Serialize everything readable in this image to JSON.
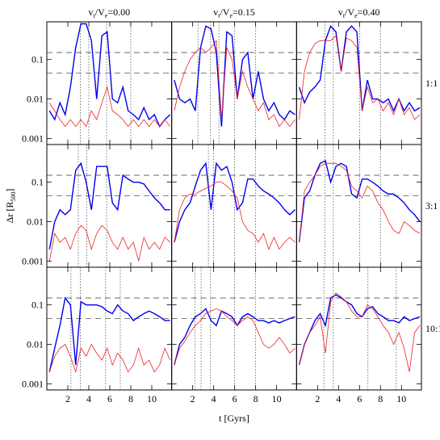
{
  "figure": {
    "xlabel": "t [Gyrs]",
    "ylabel_parts": [
      "Δr [R",
      "500",
      "]"
    ],
    "hlines": [
      0.15,
      0.045
    ]
  },
  "chart_data": [
    {
      "type": "line",
      "title_parts": [
        "v",
        "t",
        "/V",
        "e",
        "=0.00"
      ],
      "log_y": true,
      "xlim": [
        0,
        11.9
      ],
      "ylim": [
        0.0007,
        0.9
      ],
      "xticks": [
        2,
        4,
        6,
        8,
        10
      ],
      "yticks": [
        0.001,
        0.01,
        0.1
      ],
      "vlines": [
        3.2,
        4.0,
        5.7,
        8.0
      ],
      "x": [
        0.25,
        0.75,
        1.25,
        1.75,
        2.25,
        2.75,
        3.25,
        3.75,
        4.25,
        4.75,
        5.25,
        5.75,
        6.25,
        6.75,
        7.25,
        7.75,
        8.25,
        8.75,
        9.25,
        9.75,
        10.25,
        10.75,
        11.25,
        11.75
      ],
      "series": [
        {
          "color": "#0000ee",
          "values": [
            0.005,
            0.003,
            0.008,
            0.004,
            0.02,
            0.2,
            0.8,
            0.8,
            0.3,
            0.01,
            0.4,
            0.5,
            0.01,
            0.008,
            0.02,
            0.005,
            0.004,
            0.003,
            0.006,
            0.003,
            0.004,
            0.002,
            0.003,
            0.004
          ]
        },
        {
          "color": "#ee2222",
          "values": [
            0.008,
            0.005,
            0.003,
            0.002,
            0.003,
            0.002,
            0.003,
            0.002,
            0.005,
            0.003,
            0.008,
            0.02,
            0.005,
            0.004,
            0.003,
            0.002,
            0.003,
            0.002,
            0.003,
            0.002,
            0.003,
            0.002,
            0.003,
            0.002
          ]
        }
      ]
    },
    {
      "type": "line",
      "title_parts": [
        "v",
        "t",
        "/V",
        "e",
        "=0.15"
      ],
      "log_y": true,
      "xlim": [
        0,
        11.9
      ],
      "ylim": [
        0.0007,
        0.9
      ],
      "xticks": [
        2,
        4,
        6,
        8,
        10
      ],
      "yticks": [
        0.001,
        0.01,
        0.1
      ],
      "vlines": [
        2.5,
        3.7,
        4.5,
        6.0,
        8.0
      ],
      "x": [
        0.25,
        0.75,
        1.25,
        1.75,
        2.25,
        2.75,
        3.25,
        3.75,
        4.25,
        4.75,
        5.25,
        5.75,
        6.25,
        6.75,
        7.25,
        7.75,
        8.25,
        8.75,
        9.25,
        9.75,
        10.25,
        10.75,
        11.25,
        11.75
      ],
      "series": [
        {
          "color": "#0000ee",
          "values": [
            0.03,
            0.01,
            0.008,
            0.01,
            0.005,
            0.2,
            0.7,
            0.6,
            0.15,
            0.002,
            0.5,
            0.4,
            0.01,
            0.1,
            0.15,
            0.01,
            0.05,
            0.01,
            0.005,
            0.008,
            0.004,
            0.003,
            0.005,
            0.004
          ]
        },
        {
          "color": "#ee2222",
          "values": [
            0.005,
            0.02,
            0.05,
            0.1,
            0.15,
            0.2,
            0.15,
            0.2,
            0.3,
            0.003,
            0.2,
            0.1,
            0.01,
            0.05,
            0.02,
            0.01,
            0.005,
            0.008,
            0.003,
            0.004,
            0.002,
            0.003,
            0.002,
            0.003
          ]
        }
      ]
    },
    {
      "type": "line",
      "title_parts": [
        "v",
        "t",
        "/V",
        "e",
        "=0.40"
      ],
      "row_label": "1:1",
      "log_y": true,
      "xlim": [
        0,
        11.9
      ],
      "ylim": [
        0.0007,
        0.9
      ],
      "xticks": [
        2,
        4,
        6,
        8,
        10
      ],
      "yticks": [
        0.001,
        0.01,
        0.1
      ],
      "vlines": [
        2.7,
        3.5,
        6.0,
        8.0
      ],
      "x": [
        0.25,
        0.75,
        1.25,
        1.75,
        2.25,
        2.75,
        3.25,
        3.75,
        4.25,
        4.75,
        5.25,
        5.75,
        6.25,
        6.75,
        7.25,
        7.75,
        8.25,
        8.75,
        9.25,
        9.75,
        10.25,
        10.75,
        11.25,
        11.75
      ],
      "series": [
        {
          "color": "#0000ee",
          "values": [
            0.02,
            0.008,
            0.015,
            0.02,
            0.03,
            0.3,
            0.7,
            0.5,
            0.05,
            0.5,
            0.7,
            0.5,
            0.005,
            0.03,
            0.01,
            0.01,
            0.008,
            0.01,
            0.005,
            0.01,
            0.005,
            0.008,
            0.005,
            0.006
          ]
        },
        {
          "color": "#ee2222",
          "values": [
            0.003,
            0.05,
            0.15,
            0.25,
            0.3,
            0.3,
            0.3,
            0.4,
            0.05,
            0.35,
            0.3,
            0.2,
            0.005,
            0.02,
            0.008,
            0.01,
            0.005,
            0.008,
            0.004,
            0.01,
            0.004,
            0.006,
            0.003,
            0.004
          ]
        }
      ]
    },
    {
      "type": "line",
      "log_y": true,
      "xlim": [
        0,
        11.9
      ],
      "ylim": [
        0.0007,
        0.9
      ],
      "xticks": [
        2,
        4,
        6,
        8,
        10
      ],
      "yticks": [
        0.001,
        0.01,
        0.1
      ],
      "vlines": [
        3.0,
        3.8,
        5.7
      ],
      "x": [
        0.25,
        0.75,
        1.25,
        1.75,
        2.25,
        2.75,
        3.25,
        3.75,
        4.25,
        4.75,
        5.25,
        5.75,
        6.25,
        6.75,
        7.25,
        7.75,
        8.25,
        8.75,
        9.25,
        9.75,
        10.25,
        10.75,
        11.25,
        11.75
      ],
      "series": [
        {
          "color": "#0000ee",
          "values": [
            0.002,
            0.01,
            0.02,
            0.015,
            0.02,
            0.2,
            0.3,
            0.1,
            0.02,
            0.25,
            0.25,
            0.25,
            0.03,
            0.02,
            0.15,
            0.12,
            0.1,
            0.1,
            0.09,
            0.06,
            0.04,
            0.03,
            0.02,
            0.02
          ]
        },
        {
          "color": "#ee2222",
          "values": [
            0.001,
            0.005,
            0.003,
            0.004,
            0.002,
            0.005,
            0.008,
            0.006,
            0.002,
            0.005,
            0.008,
            0.006,
            0.003,
            0.002,
            0.004,
            0.002,
            0.003,
            0.001,
            0.004,
            0.002,
            0.003,
            0.002,
            0.004,
            0.003
          ]
        }
      ]
    },
    {
      "type": "line",
      "log_y": true,
      "xlim": [
        0,
        11.9
      ],
      "ylim": [
        0.0007,
        0.9
      ],
      "xticks": [
        2,
        4,
        6,
        8,
        10
      ],
      "yticks": [
        0.001,
        0.01,
        0.1
      ],
      "vlines": [
        3.5,
        4.0,
        6.0,
        8.0
      ],
      "x": [
        0.25,
        0.75,
        1.25,
        1.75,
        2.25,
        2.75,
        3.25,
        3.75,
        4.25,
        4.75,
        5.25,
        5.75,
        6.25,
        6.75,
        7.25,
        7.75,
        8.25,
        8.75,
        9.25,
        9.75,
        10.25,
        10.75,
        11.25,
        11.75
      ],
      "series": [
        {
          "color": "#0000ee",
          "values": [
            0.003,
            0.01,
            0.02,
            0.03,
            0.08,
            0.2,
            0.3,
            0.02,
            0.3,
            0.2,
            0.25,
            0.1,
            0.02,
            0.03,
            0.12,
            0.12,
            0.08,
            0.06,
            0.05,
            0.04,
            0.03,
            0.02,
            0.015,
            0.02
          ]
        },
        {
          "color": "#ee2222",
          "values": [
            0.003,
            0.02,
            0.04,
            0.05,
            0.05,
            0.06,
            0.07,
            0.08,
            0.1,
            0.1,
            0.08,
            0.06,
            0.04,
            0.01,
            0.006,
            0.005,
            0.003,
            0.005,
            0.002,
            0.004,
            0.002,
            0.003,
            0.004,
            0.003
          ]
        }
      ]
    },
    {
      "type": "line",
      "row_label": "3:1",
      "log_y": true,
      "xlim": [
        0,
        11.9
      ],
      "ylim": [
        0.0007,
        0.9
      ],
      "xticks": [
        2,
        4,
        6,
        8,
        10
      ],
      "yticks": [
        0.001,
        0.01,
        0.1
      ],
      "vlines": [
        2.7,
        3.5,
        6.0,
        8.0
      ],
      "x": [
        0.25,
        0.75,
        1.25,
        1.75,
        2.25,
        2.75,
        3.25,
        3.75,
        4.25,
        4.75,
        5.25,
        5.75,
        6.25,
        6.75,
        7.25,
        7.75,
        8.25,
        8.75,
        9.25,
        9.75,
        10.25,
        10.75,
        11.25,
        11.75
      ],
      "series": [
        {
          "color": "#0000ee",
          "values": [
            0.003,
            0.04,
            0.06,
            0.15,
            0.3,
            0.35,
            0.1,
            0.25,
            0.3,
            0.25,
            0.05,
            0.04,
            0.12,
            0.12,
            0.1,
            0.08,
            0.06,
            0.05,
            0.05,
            0.04,
            0.03,
            0.02,
            0.015,
            0.01
          ]
        },
        {
          "color": "#ee2222",
          "values": [
            0.003,
            0.06,
            0.1,
            0.15,
            0.25,
            0.3,
            0.3,
            0.3,
            0.25,
            0.2,
            0.08,
            0.06,
            0.04,
            0.08,
            0.06,
            0.03,
            0.02,
            0.01,
            0.006,
            0.005,
            0.01,
            0.008,
            0.006,
            0.005
          ]
        }
      ]
    },
    {
      "type": "line",
      "log_y": true,
      "xlim": [
        0,
        11.9
      ],
      "ylim": [
        0.0007,
        0.9
      ],
      "xticks": [
        2,
        4,
        6,
        8,
        10
      ],
      "yticks": [
        0.001,
        0.01,
        0.1
      ],
      "vlines": [
        2.3,
        3.2,
        5.6,
        7.0
      ],
      "x": [
        0.25,
        0.75,
        1.25,
        1.75,
        2.25,
        2.75,
        3.25,
        3.75,
        4.25,
        4.75,
        5.25,
        5.75,
        6.25,
        6.75,
        7.25,
        7.75,
        8.25,
        8.75,
        9.25,
        9.75,
        10.25,
        10.75,
        11.25,
        11.75
      ],
      "series": [
        {
          "color": "#0000ee",
          "values": [
            0.002,
            0.008,
            0.03,
            0.15,
            0.1,
            0.003,
            0.12,
            0.1,
            0.1,
            0.1,
            0.09,
            0.07,
            0.06,
            0.1,
            0.07,
            0.06,
            0.04,
            0.05,
            0.06,
            0.07,
            0.06,
            0.05,
            0.04,
            0.04
          ]
        },
        {
          "color": "#ee2222",
          "values": [
            0.002,
            0.005,
            0.008,
            0.01,
            0.005,
            0.002,
            0.008,
            0.005,
            0.01,
            0.006,
            0.004,
            0.008,
            0.003,
            0.006,
            0.004,
            0.002,
            0.003,
            0.008,
            0.003,
            0.004,
            0.002,
            0.003,
            0.008,
            0.004
          ]
        }
      ]
    },
    {
      "type": "line",
      "log_y": true,
      "xlim": [
        0,
        11.9
      ],
      "ylim": [
        0.0007,
        0.9
      ],
      "xticks": [
        2,
        4,
        6,
        8,
        10
      ],
      "yticks": [
        0.001,
        0.01,
        0.1
      ],
      "vlines": [
        2.2,
        2.8,
        3.7,
        6.0,
        8.0
      ],
      "x": [
        0.25,
        0.75,
        1.25,
        1.75,
        2.25,
        2.75,
        3.25,
        3.75,
        4.25,
        4.75,
        5.25,
        5.75,
        6.25,
        6.75,
        7.25,
        7.75,
        8.25,
        8.75,
        9.25,
        9.75,
        10.25,
        10.75,
        11.25,
        11.75
      ],
      "series": [
        {
          "color": "#0000ee",
          "values": [
            0.003,
            0.01,
            0.015,
            0.03,
            0.05,
            0.06,
            0.08,
            0.04,
            0.03,
            0.07,
            0.06,
            0.05,
            0.03,
            0.05,
            0.06,
            0.05,
            0.04,
            0.04,
            0.035,
            0.04,
            0.035,
            0.04,
            0.045,
            0.05
          ]
        },
        {
          "color": "#ee2222",
          "values": [
            0.003,
            0.008,
            0.012,
            0.02,
            0.03,
            0.04,
            0.06,
            0.07,
            0.08,
            0.07,
            0.05,
            0.04,
            0.03,
            0.04,
            0.05,
            0.04,
            0.02,
            0.01,
            0.008,
            0.01,
            0.015,
            0.01,
            0.006,
            0.008
          ]
        }
      ]
    },
    {
      "type": "line",
      "row_label": "10:1",
      "log_y": true,
      "xlim": [
        0,
        11.9
      ],
      "ylim": [
        0.0007,
        0.9
      ],
      "xticks": [
        2,
        4,
        6,
        8,
        10
      ],
      "yticks": [
        0.001,
        0.01,
        0.1
      ],
      "vlines": [
        2.6,
        3.5,
        6.8,
        9.5
      ],
      "x": [
        0.25,
        0.75,
        1.25,
        1.75,
        2.25,
        2.75,
        3.25,
        3.75,
        4.25,
        4.75,
        5.25,
        5.75,
        6.25,
        6.75,
        7.25,
        7.75,
        8.25,
        8.75,
        9.25,
        9.75,
        10.25,
        10.75,
        11.25,
        11.75
      ],
      "series": [
        {
          "color": "#0000ee",
          "values": [
            0.003,
            0.01,
            0.02,
            0.04,
            0.06,
            0.03,
            0.15,
            0.18,
            0.15,
            0.12,
            0.1,
            0.06,
            0.05,
            0.08,
            0.09,
            0.06,
            0.05,
            0.04,
            0.04,
            0.035,
            0.05,
            0.04,
            0.045,
            0.05
          ]
        },
        {
          "color": "#ee2222",
          "values": [
            0.003,
            0.01,
            0.02,
            0.03,
            0.05,
            0.006,
            0.12,
            0.2,
            0.16,
            0.12,
            0.07,
            0.05,
            0.05,
            0.1,
            0.08,
            0.05,
            0.03,
            0.02,
            0.01,
            0.02,
            0.008,
            0.002,
            0.02,
            0.03
          ]
        }
      ]
    }
  ]
}
